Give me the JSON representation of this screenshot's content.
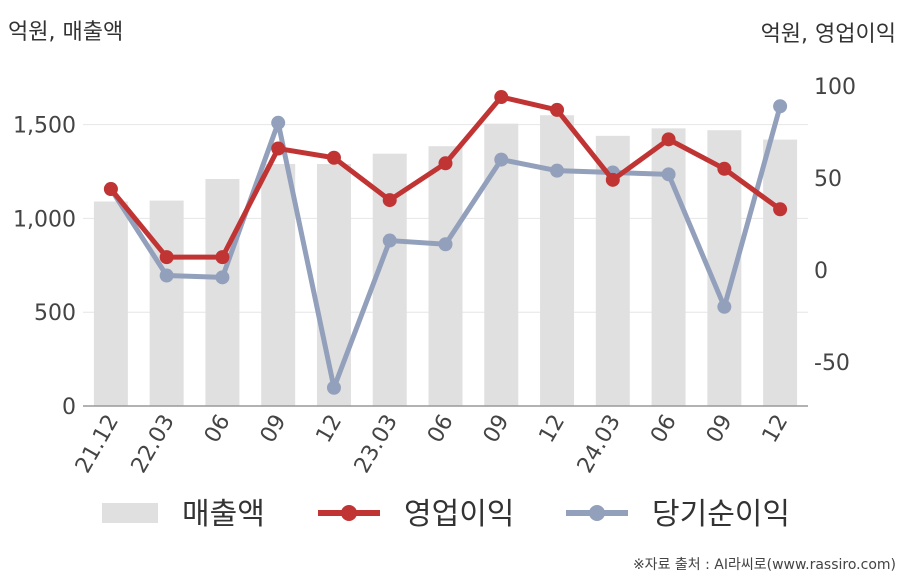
{
  "left_axis_title": "억원, 매출액",
  "right_axis_title": "억원, 영업이익",
  "source": "※자료 출처 : AI라씨로(www.rassiro.com)",
  "colors": {
    "bar": "#e0e0e0",
    "operating_profit": "#c03434",
    "net_income": "#93a0bc",
    "axis": "#999999",
    "grid": "#e6e6e6",
    "tick_text": "#444444"
  },
  "chart_data": {
    "type": "bar+line",
    "categories": [
      "21.12",
      "22.03",
      "06",
      "09",
      "12",
      "23.03",
      "06",
      "09",
      "12",
      "24.03",
      "06",
      "09",
      "12"
    ],
    "left_axis": {
      "ylim": [
        0,
        1750
      ],
      "ticks": [
        0,
        500,
        1000,
        1500
      ],
      "tick_labels": [
        "0",
        "500",
        "1,000",
        "1,500"
      ]
    },
    "right_axis": {
      "ylim": [
        -74,
        100
      ],
      "ticks": [
        -50,
        0,
        50,
        100
      ],
      "tick_labels": [
        "-50",
        "0",
        "50",
        "100"
      ]
    },
    "series": [
      {
        "name": "매출액",
        "type": "bar",
        "axis": "left",
        "values": [
          1090,
          1095,
          1210,
          1290,
          1290,
          1345,
          1385,
          1505,
          1550,
          1440,
          1480,
          1470,
          1420
        ]
      },
      {
        "name": "영업이익",
        "type": "line",
        "axis": "right",
        "values": [
          44,
          7,
          7,
          66,
          61,
          38,
          58,
          94,
          87,
          49,
          71,
          55,
          33
        ]
      },
      {
        "name": "당기순이익",
        "type": "line",
        "axis": "right",
        "values": [
          44,
          -3,
          -4,
          80,
          -64,
          16,
          14,
          60,
          54,
          53,
          52,
          -20,
          89
        ]
      }
    ],
    "grid": true,
    "legend": "bottom"
  }
}
